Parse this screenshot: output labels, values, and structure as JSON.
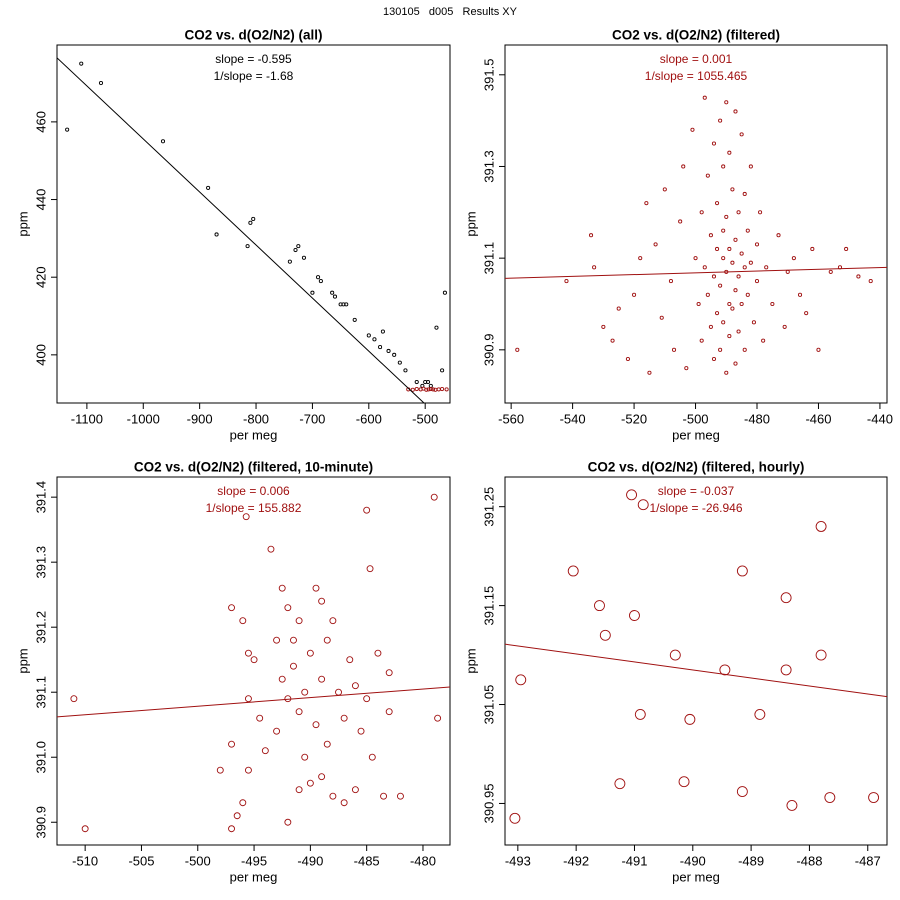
{
  "title": "130105   d005   Results XY",
  "chart_data": [
    {
      "type": "scatter",
      "title": "CO2 vs. d(O2/N2) (all)",
      "xlabel": "per meg",
      "ylabel": "ppm",
      "annotations": [
        "slope = -0.595",
        "1/slope = -1.68"
      ],
      "annotation_color": "#000000",
      "xlim": [
        -1153,
        -456
      ],
      "ylim": [
        387.6,
        479.8
      ],
      "xticks": [
        -1100,
        -1000,
        -900,
        -800,
        -700,
        -600,
        -500
      ],
      "yticks": [
        400,
        420,
        440,
        460
      ],
      "series": [
        {
          "color": "#000000",
          "x": [
            -1135,
            -1110,
            -1075,
            -965,
            -885,
            -870,
            -815,
            -810,
            -805,
            -740,
            -730,
            -725,
            -715,
            -700,
            -690,
            -685,
            -665,
            -660,
            -650,
            -645,
            -640,
            -625,
            -600,
            -590,
            -580,
            -575,
            -565,
            -555,
            -545,
            -535,
            -515,
            -505,
            -500,
            -495,
            -490,
            -480,
            -470,
            -465
          ],
          "values": [
            458,
            475,
            470,
            455,
            443,
            431,
            428,
            434,
            435,
            424,
            427,
            428,
            425,
            416,
            420,
            419,
            416,
            415,
            413,
            413,
            413,
            409,
            405,
            404,
            402,
            406,
            401,
            400,
            398,
            396,
            393,
            392,
            393,
            393,
            392,
            407,
            396,
            416
          ]
        },
        {
          "color": "#a01010",
          "x": [
            -530,
            -522,
            -515,
            -508,
            -503,
            -498,
            -494,
            -490,
            -486,
            -482,
            -476,
            -470,
            -462
          ],
          "values": [
            391.1,
            391.0,
            391.2,
            391.1,
            391.3,
            391.0,
            391.1,
            391.2,
            391.1,
            391.0,
            391.1,
            391.2,
            391.1
          ]
        }
      ],
      "fit_line": {
        "color": "#000000",
        "x": [
          -1153,
          -456
        ],
        "values": [
          476.5,
          381.3
        ]
      }
    },
    {
      "type": "scatter",
      "title": "CO2 vs. d(O2/N2) (filtered)",
      "xlabel": "per meg",
      "ylabel": "ppm",
      "annotations": [
        "slope = 0.001",
        "1/slope = 1055.465"
      ],
      "annotation_color": "#a01010",
      "xlim": [
        -562,
        -437.7
      ],
      "ylim": [
        390.784,
        391.565
      ],
      "xticks": [
        -560,
        -540,
        -520,
        -500,
        -480,
        -460,
        -440
      ],
      "yticks": [
        390.9,
        391.1,
        391.3,
        391.5
      ],
      "series": [
        {
          "color": "#a01010",
          "x": [
            -558,
            -542,
            -534,
            -533,
            -530,
            -527,
            -525,
            -522,
            -520,
            -518,
            -516,
            -515,
            -513,
            -511,
            -510,
            -508,
            -507,
            -505,
            -504,
            -503,
            -501,
            -500,
            -499,
            -498,
            -498,
            -497,
            -497,
            -496,
            -496,
            -495,
            -495,
            -494,
            -494,
            -494,
            -493,
            -493,
            -493,
            -492,
            -492,
            -492,
            -491,
            -491,
            -491,
            -491,
            -490,
            -490,
            -490,
            -490,
            -489,
            -489,
            -489,
            -489,
            -488,
            -488,
            -488,
            -487,
            -487,
            -487,
            -487,
            -486,
            -486,
            -486,
            -485,
            -485,
            -485,
            -484,
            -484,
            -484,
            -483,
            -483,
            -482,
            -482,
            -481,
            -480,
            -480,
            -479,
            -478,
            -477,
            -475,
            -473,
            -471,
            -470,
            -468,
            -466,
            -464,
            -462,
            -460,
            -456,
            -453,
            -451,
            -447,
            -443
          ],
          "values": [
            390.9,
            391.05,
            391.15,
            391.08,
            390.95,
            390.92,
            390.99,
            390.88,
            391.02,
            391.1,
            391.22,
            390.85,
            391.13,
            390.97,
            391.25,
            391.05,
            390.9,
            391.18,
            391.3,
            390.86,
            391.38,
            391.1,
            391.0,
            391.2,
            390.92,
            391.45,
            391.08,
            391.28,
            391.02,
            390.95,
            391.15,
            391.35,
            391.06,
            390.88,
            391.22,
            391.12,
            390.98,
            391.4,
            391.04,
            390.9,
            391.3,
            391.1,
            391.16,
            390.96,
            391.44,
            391.07,
            391.19,
            390.85,
            391.33,
            391.0,
            391.12,
            390.93,
            391.25,
            391.09,
            390.99,
            391.42,
            391.14,
            391.03,
            390.87,
            391.2,
            391.06,
            390.94,
            391.37,
            391.11,
            391.0,
            391.24,
            391.08,
            390.9,
            391.16,
            391.02,
            391.3,
            391.09,
            390.96,
            391.13,
            391.05,
            391.2,
            390.92,
            391.08,
            391.0,
            391.15,
            390.95,
            391.07,
            391.1,
            391.02,
            390.98,
            391.12,
            390.9,
            391.07,
            391.08,
            391.12,
            391.06,
            391.05
          ]
        }
      ],
      "fit_line": {
        "color": "#a01010",
        "x": [
          -562,
          -437.7
        ],
        "values": [
          391.056,
          391.08
        ]
      }
    },
    {
      "type": "scatter",
      "title": "CO2 vs. d(O2/N2) (filtered, 10-minute)",
      "xlabel": "per meg",
      "ylabel": "ppm",
      "annotations": [
        "slope = 0.006",
        "1/slope = 155.882"
      ],
      "annotation_color": "#a01010",
      "xlim": [
        -512.5,
        -477.6
      ],
      "ylim": [
        390.865,
        391.431
      ],
      "xticks": [
        -510,
        -505,
        -500,
        -495,
        -490,
        -485,
        -480
      ],
      "yticks": [
        390.9,
        {
          "value": 391.0,
          "label": "391.0"
        },
        391.1,
        391.2,
        391.3,
        391.4
      ],
      "series": [
        {
          "color": "#a01010",
          "x": [
            -511,
            -510,
            -498,
            -497,
            -497,
            -497,
            -496.5,
            -496,
            -496,
            -495.7,
            -495.5,
            -495.5,
            -495.5,
            -495,
            -494.5,
            -494,
            -493.5,
            -493,
            -493,
            -492.5,
            -492.5,
            -492,
            -492,
            -492,
            -491.5,
            -491.5,
            -491,
            -491,
            -491,
            -490.5,
            -490.5,
            -490,
            -490,
            -489.5,
            -489.5,
            -489,
            -489,
            -489,
            -488.5,
            -488.5,
            -488,
            -488,
            -487.5,
            -487,
            -487,
            -486.5,
            -486,
            -486,
            -485.5,
            -485,
            -485,
            -484.7,
            -484.5,
            -484,
            -483.5,
            -483,
            -483,
            -482,
            -479,
            -478.7
          ],
          "values": [
            391.09,
            390.89,
            390.98,
            391.23,
            391.02,
            390.89,
            390.91,
            391.21,
            390.93,
            391.37,
            391.16,
            391.09,
            390.98,
            391.15,
            391.06,
            391.01,
            391.32,
            391.18,
            391.04,
            391.26,
            391.12,
            391.23,
            391.09,
            390.9,
            391.18,
            391.14,
            391.07,
            390.95,
            391.21,
            391.1,
            391.0,
            391.16,
            390.96,
            391.26,
            391.05,
            391.24,
            391.12,
            390.97,
            391.18,
            391.02,
            391.21,
            390.94,
            391.1,
            391.06,
            390.93,
            391.15,
            391.11,
            390.95,
            391.04,
            391.38,
            391.09,
            391.29,
            391.0,
            391.16,
            390.94,
            391.13,
            391.07,
            390.94,
            391.4,
            391.06
          ]
        }
      ],
      "fit_line": {
        "color": "#a01010",
        "x": [
          -512.5,
          -477.6
        ],
        "values": [
          391.062,
          391.108
        ]
      }
    },
    {
      "type": "scatter",
      "title": "CO2 vs. d(O2/N2) (filtered, hourly)",
      "xlabel": "per meg",
      "ylabel": "ppm",
      "annotations": [
        "slope = -0.037",
        "1/slope = -26.946"
      ],
      "annotation_color": "#a01010",
      "xlim": [
        -493.22,
        -486.67
      ],
      "ylim": [
        390.908,
        391.28
      ],
      "xticks": [
        -493,
        -492,
        -491,
        -490,
        -489,
        -488,
        -487
      ],
      "yticks": [
        390.95,
        391.05,
        391.15,
        391.25
      ],
      "series": [
        {
          "color": "#a01010",
          "x": [
            -491.05,
            -490.85,
            -492.05,
            -491.6,
            -491.0,
            -491.5,
            -490.3,
            -489.45,
            -488.4,
            -487.8,
            -489.15,
            -488.4,
            -487.8,
            -492.95,
            -490.9,
            -490.05,
            -488.85,
            -491.25,
            -490.15,
            -489.15,
            -488.3,
            -487.65,
            -486.9,
            -493.05
          ],
          "values": [
            391.262,
            391.252,
            391.185,
            391.15,
            391.14,
            391.12,
            391.1,
            391.085,
            391.085,
            391.1,
            391.185,
            391.158,
            391.23,
            391.075,
            391.04,
            391.035,
            391.04,
            390.97,
            390.972,
            390.962,
            390.948,
            390.956,
            390.956,
            390.935
          ]
        }
      ],
      "fit_line": {
        "color": "#a01010",
        "x": [
          -493.22,
          -486.67
        ],
        "values": [
          391.111,
          391.058
        ]
      }
    }
  ]
}
